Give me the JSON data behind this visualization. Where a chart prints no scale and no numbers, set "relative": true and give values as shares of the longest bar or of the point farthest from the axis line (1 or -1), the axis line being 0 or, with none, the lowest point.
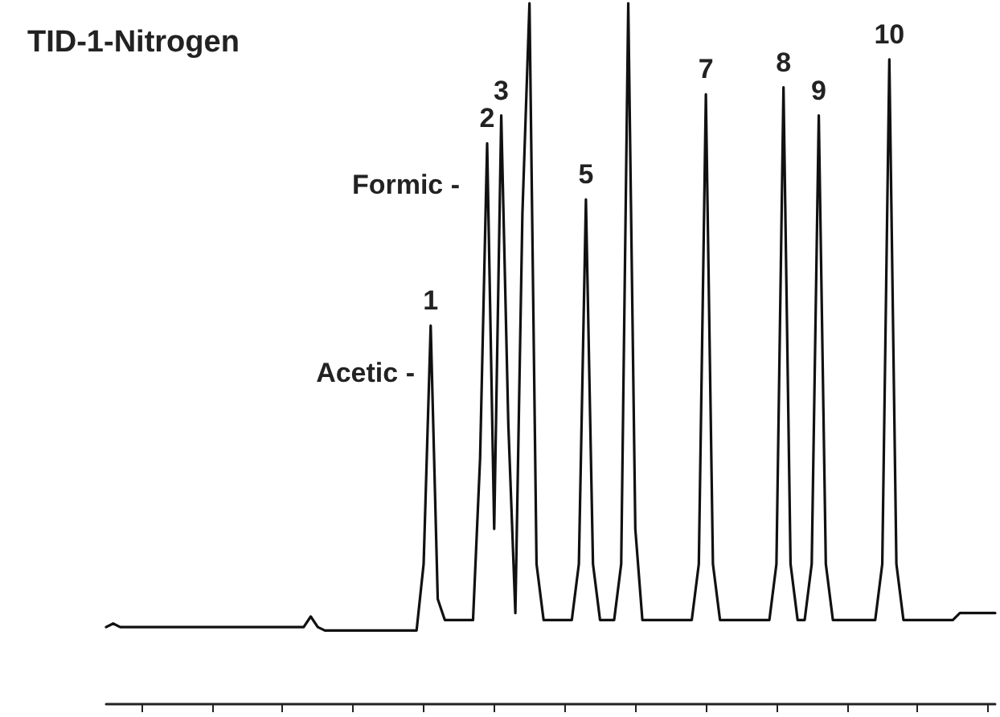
{
  "chart_data": {
    "type": "line",
    "title": "TID-1-Nitrogen",
    "relative": true,
    "grid": false,
    "marker": "none",
    "line_style": "solid",
    "categories": [
      null,
      null,
      null,
      null,
      null,
      null,
      null,
      null,
      null,
      null,
      null,
      null,
      null,
      null,
      null,
      null,
      null,
      null,
      null,
      null,
      null,
      null,
      null,
      null,
      null,
      null,
      null,
      null,
      null,
      null,
      null,
      null,
      null,
      null,
      null,
      null,
      null,
      null,
      null,
      null,
      null,
      null,
      null,
      null,
      null,
      null,
      null,
      null,
      null,
      null,
      null,
      null,
      null,
      null,
      null,
      null,
      null,
      null,
      null,
      null,
      null,
      null,
      null,
      null,
      null,
      null,
      null,
      null,
      null,
      null,
      null,
      null,
      null,
      null,
      null,
      null,
      null,
      null,
      null,
      null,
      null,
      null,
      null,
      null,
      null,
      null,
      null,
      null,
      null,
      null,
      null,
      null,
      null,
      null,
      null,
      null,
      null,
      null,
      null,
      null,
      null,
      null,
      null,
      null,
      null,
      null,
      null,
      null,
      null,
      null,
      null,
      null,
      null,
      null,
      null,
      null,
      null,
      null,
      null,
      null,
      null,
      null,
      null,
      null,
      null,
      null,
      null
    ],
    "series": [
      {
        "color": "#111111",
        "values": [
          0.11,
          0.115,
          0.11,
          0.11,
          0.11,
          0.11,
          0.11,
          0.11,
          0.11,
          0.11,
          0.11,
          0.11,
          0.11,
          0.11,
          0.11,
          0.11,
          0.11,
          0.11,
          0.11,
          0.11,
          0.11,
          0.11,
          0.11,
          0.11,
          0.11,
          0.11,
          0.11,
          0.11,
          0.11,
          0.125,
          0.11,
          0.105,
          0.105,
          0.105,
          0.105,
          0.105,
          0.105,
          0.105,
          0.105,
          0.105,
          0.105,
          0.105,
          0.105,
          0.105,
          0.105,
          0.2,
          0.54,
          0.15,
          0.12,
          0.12,
          0.12,
          0.12,
          0.12,
          0.35,
          0.8,
          0.25,
          0.84,
          0.4,
          0.13,
          0.7,
          1,
          0.2,
          0.12,
          0.12,
          0.12,
          0.12,
          0.12,
          0.2,
          0.72,
          0.2,
          0.12,
          0.12,
          0.12,
          0.2,
          1,
          0.25,
          0.12,
          0.12,
          0.12,
          0.12,
          0.12,
          0.12,
          0.12,
          0.12,
          0.2,
          0.87,
          0.2,
          0.12,
          0.12,
          0.12,
          0.12,
          0.12,
          0.12,
          0.12,
          0.12,
          0.2,
          0.88,
          0.2,
          0.12,
          0.12,
          0.2,
          0.84,
          0.2,
          0.12,
          0.12,
          0.12,
          0.12,
          0.12,
          0.12,
          0.12,
          0.2,
          0.92,
          0.2,
          0.12,
          0.12,
          0.12,
          0.12,
          0.12,
          0.12,
          0.12,
          0.12,
          0.13,
          0.13,
          0.13,
          0.13,
          0.13,
          0.13
        ]
      }
    ],
    "annotations": [
      {
        "text": "1",
        "y": 0.54
      },
      {
        "text": "2",
        "y": 0.8
      },
      {
        "text": "3",
        "y": 0.84
      },
      {
        "text": "5",
        "y": 0.72
      },
      {
        "text": "7",
        "y": 0.87
      },
      {
        "text": "8",
        "y": 0.88
      },
      {
        "text": "9",
        "y": 0.84
      },
      {
        "text": "10",
        "y": 0.92
      },
      "Acetic -",
      "Formic -"
    ]
  }
}
